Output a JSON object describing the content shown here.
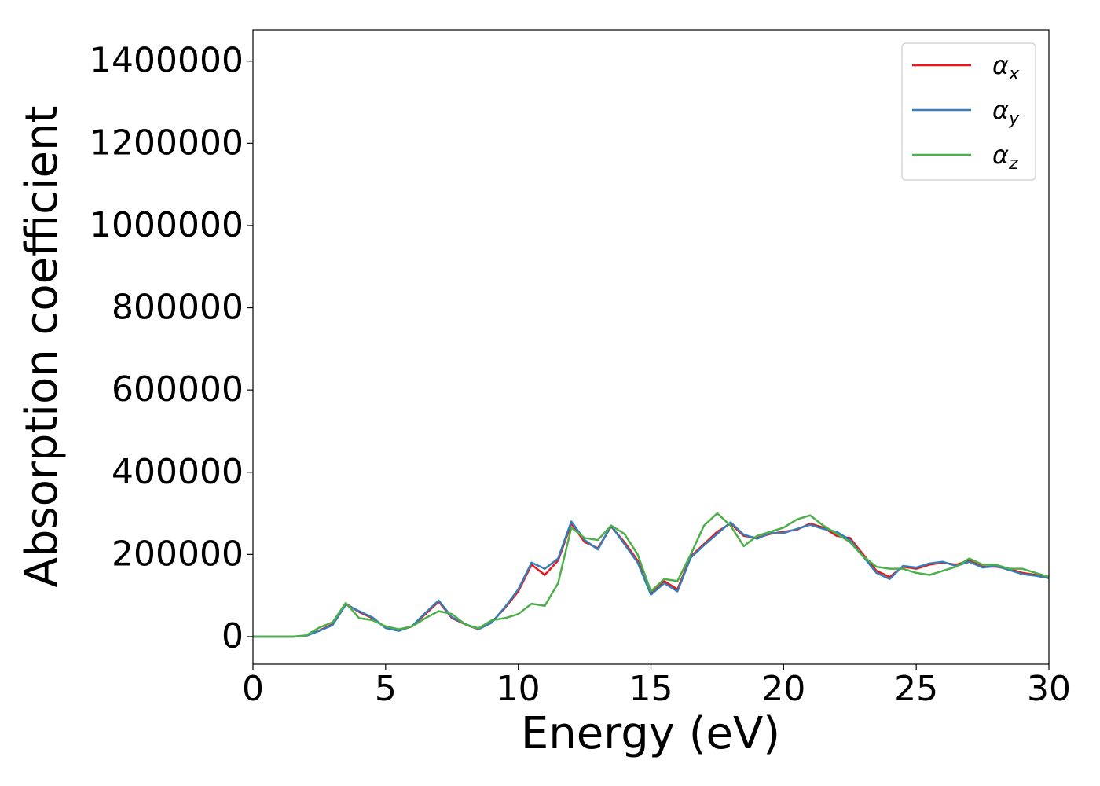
{
  "chart_data": {
    "type": "line",
    "xlabel": "Energy (eV)",
    "ylabel": "Absorption coefficient",
    "x": [
      0,
      0.5,
      1,
      1.5,
      2,
      2.5,
      3,
      3.5,
      4,
      4.5,
      5,
      5.5,
      6,
      6.5,
      7,
      7.5,
      8,
      8.5,
      9,
      9.5,
      10,
      10.5,
      11,
      11.5,
      12,
      12.5,
      13,
      13.5,
      14,
      14.5,
      15,
      15.5,
      16,
      16.5,
      17,
      17.5,
      18,
      18.5,
      19,
      19.5,
      20,
      20.5,
      21,
      21.5,
      22,
      22.5,
      23,
      23.5,
      24,
      24.5,
      25,
      25.5,
      26,
      26.5,
      27,
      27.5,
      28,
      28.5,
      29,
      29.5,
      30
    ],
    "series": [
      {
        "name": "αx",
        "color": "#e41a1c",
        "values": [
          0,
          0,
          0,
          0,
          2000,
          15000,
          30000,
          80000,
          60000,
          45000,
          22000,
          15000,
          25000,
          55000,
          85000,
          45000,
          30000,
          18000,
          35000,
          70000,
          110000,
          175000,
          150000,
          185000,
          275000,
          230000,
          215000,
          268000,
          230000,
          185000,
          105000,
          135000,
          115000,
          195000,
          225000,
          255000,
          275000,
          245000,
          240000,
          250000,
          255000,
          260000,
          275000,
          265000,
          245000,
          240000,
          200000,
          160000,
          145000,
          170000,
          165000,
          175000,
          180000,
          175000,
          185000,
          170000,
          170000,
          165000,
          155000,
          150000,
          145000
        ]
      },
      {
        "name": "αy",
        "color": "#377eb8",
        "values": [
          0,
          0,
          0,
          0,
          2000,
          14000,
          28000,
          78000,
          62000,
          47000,
          21000,
          14000,
          26000,
          58000,
          88000,
          47000,
          31000,
          18000,
          34000,
          72000,
          115000,
          180000,
          165000,
          190000,
          280000,
          235000,
          212000,
          270000,
          225000,
          180000,
          102000,
          130000,
          110000,
          192000,
          222000,
          250000,
          278000,
          248000,
          238000,
          252000,
          252000,
          262000,
          272000,
          262000,
          255000,
          235000,
          195000,
          155000,
          140000,
          172000,
          168000,
          178000,
          182000,
          172000,
          182000,
          168000,
          172000,
          162000,
          152000,
          148000,
          142000
        ]
      },
      {
        "name": "αz",
        "color": "#4daf4a",
        "values": [
          0,
          0,
          0,
          0,
          3000,
          22000,
          35000,
          82000,
          45000,
          40000,
          25000,
          18000,
          25000,
          45000,
          62000,
          55000,
          30000,
          20000,
          40000,
          45000,
          55000,
          80000,
          75000,
          130000,
          265000,
          240000,
          235000,
          270000,
          250000,
          200000,
          110000,
          140000,
          135000,
          200000,
          270000,
          300000,
          270000,
          220000,
          245000,
          255000,
          265000,
          285000,
          295000,
          270000,
          250000,
          230000,
          195000,
          170000,
          165000,
          165000,
          155000,
          150000,
          160000,
          170000,
          190000,
          175000,
          175000,
          165000,
          165000,
          155000,
          145000
        ]
      }
    ],
    "xlim": [
      0,
      30
    ],
    "xticks": [
      0,
      5,
      10,
      15,
      20,
      25,
      30
    ],
    "ylim": [
      -67000,
      1476000
    ],
    "yticks": [
      0,
      200000,
      400000,
      600000,
      800000,
      1000000,
      1200000,
      1400000
    ],
    "grid": false,
    "legend": "upper right"
  }
}
